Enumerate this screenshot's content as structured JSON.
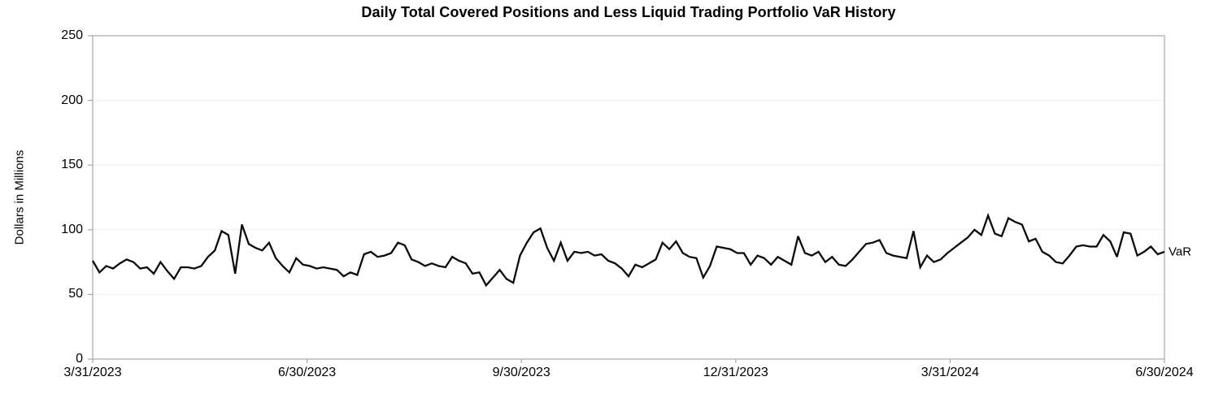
{
  "chart_data": {
    "type": "line",
    "title": "Daily Total Covered Positions and Less Liquid Trading Portfolio VaR History",
    "ylabel": "Dollars in Millions",
    "xlabel": "",
    "ylim": [
      0,
      250
    ],
    "yticks": [
      0,
      50,
      100,
      150,
      200,
      250
    ],
    "xtick_labels": [
      "3/31/2023",
      "6/30/2023",
      "9/30/2023",
      "12/31/2023",
      "3/31/2024",
      "6/30/2024"
    ],
    "grid": "horizontal light gray lines at each y tick, full border box around plot",
    "legend": "series name printed at right end of line, outside plot border",
    "x_description": "daily VaR observations, evenly spaced from 3/31/2023 to 6/30/2024",
    "series": [
      {
        "name": "VaR",
        "color": "#0b0b0b",
        "values": [
          76,
          67,
          72,
          70,
          74,
          77,
          75,
          70,
          71,
          66,
          75,
          68,
          62,
          71,
          71,
          70,
          72,
          79,
          84,
          99,
          96,
          66,
          104,
          89,
          86,
          84,
          90,
          78,
          72,
          67,
          78,
          73,
          72,
          70,
          71,
          70,
          69,
          64,
          67,
          65,
          81,
          83,
          79,
          80,
          82,
          90,
          88,
          77,
          75,
          72,
          74,
          72,
          71,
          79,
          76,
          74,
          66,
          67,
          57,
          63,
          69,
          62,
          59,
          80,
          90,
          98,
          101,
          86,
          76,
          90,
          76,
          83,
          82,
          83,
          80,
          81,
          76,
          74,
          70,
          64,
          73,
          71,
          74,
          77,
          90,
          85,
          91,
          82,
          79,
          78,
          63,
          72,
          87,
          86,
          85,
          82,
          82,
          73,
          80,
          78,
          73,
          79,
          76,
          73,
          95,
          82,
          80,
          83,
          75,
          79,
          73,
          72,
          77,
          83,
          89,
          90,
          92,
          82,
          80,
          79,
          78,
          99,
          71,
          80,
          75,
          77,
          82,
          86,
          90,
          94,
          100,
          96,
          111,
          97,
          95,
          109,
          106,
          104,
          91,
          93,
          83,
          80,
          75,
          74,
          80,
          87,
          88,
          87,
          87,
          96,
          91,
          79,
          98,
          97,
          80,
          83,
          87,
          81,
          83
        ]
      }
    ]
  },
  "colors": {
    "background": "#ffffff",
    "axis_border": "#a8a8a8",
    "gridline": "#efefef",
    "line": "#0b0b0b",
    "text": "#000000"
  }
}
